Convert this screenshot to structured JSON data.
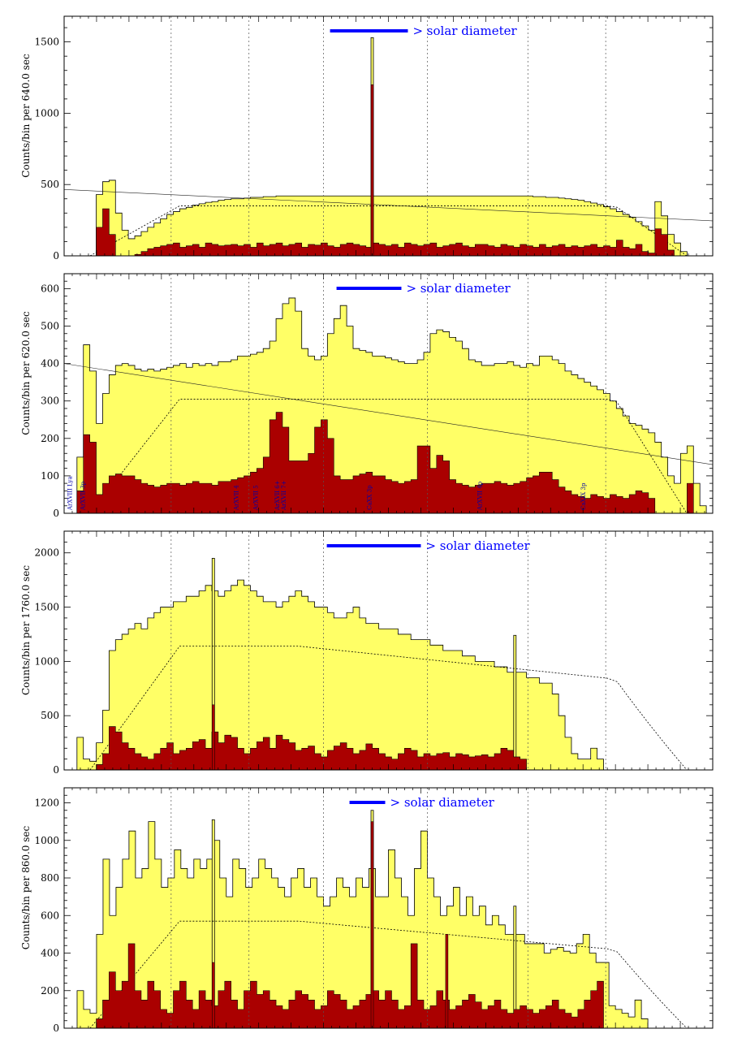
{
  "colors": {
    "total_fill": "#ffff66",
    "line_fill": "#aa0000",
    "outline": "#000000",
    "legend_bar": "#0000ff",
    "legend_text": "#0000ff",
    "label_text": "#0000aa"
  },
  "legend_text": "> solar diameter",
  "chart_data": [
    {
      "type": "area",
      "ylabel": "Counts/bin per   640.0 sec",
      "ylim": [
        0,
        1680
      ],
      "yticks": [
        0,
        500,
        1000,
        1500
      ],
      "xlim": [
        0,
        100
      ],
      "total_counts": [
        0,
        0,
        0,
        0,
        0,
        430,
        520,
        530,
        300,
        180,
        120,
        140,
        170,
        200,
        230,
        260,
        290,
        310,
        330,
        340,
        355,
        365,
        375,
        380,
        390,
        395,
        400,
        400,
        405,
        410,
        410,
        415,
        415,
        420,
        420,
        420,
        420,
        420,
        420,
        420,
        420,
        420,
        420,
        420,
        420,
        420,
        420,
        420,
        420,
        420,
        420,
        420,
        420,
        420,
        420,
        420,
        420,
        420,
        420,
        420,
        420,
        420,
        420,
        420,
        420,
        420,
        420,
        420,
        420,
        420,
        420,
        420,
        420,
        415,
        415,
        410,
        410,
        405,
        400,
        395,
        390,
        380,
        370,
        360,
        345,
        330,
        310,
        290,
        270,
        240,
        210,
        180,
        380,
        280,
        150,
        90,
        30,
        0,
        0,
        0,
        0
      ],
      "spike_total": {
        "x": 47.5,
        "y": 1530
      },
      "line_counts": [
        0,
        0,
        0,
        0,
        0,
        200,
        330,
        150,
        0,
        0,
        0,
        10,
        30,
        50,
        60,
        70,
        80,
        90,
        60,
        70,
        80,
        60,
        90,
        80,
        70,
        75,
        80,
        70,
        80,
        60,
        90,
        70,
        80,
        90,
        70,
        80,
        90,
        60,
        80,
        75,
        90,
        70,
        60,
        80,
        90,
        80,
        70,
        60,
        90,
        80,
        70,
        80,
        60,
        90,
        80,
        70,
        80,
        90,
        60,
        70,
        80,
        90,
        70,
        60,
        80,
        80,
        70,
        60,
        80,
        70,
        60,
        80,
        70,
        60,
        80,
        60,
        70,
        80,
        60,
        70,
        60,
        70,
        80,
        60,
        70,
        60,
        110,
        60,
        50,
        80,
        30,
        20,
        190,
        150,
        40,
        0,
        0,
        0,
        0,
        0,
        0
      ],
      "spike_line": {
        "x": 47.5,
        "y": 1200
      },
      "continuum": {
        "start": 465,
        "end": 245
      },
      "model_peak": 350,
      "legend_bar_pos": [
        41,
        53
      ],
      "vlines": [
        16.5,
        28.5,
        40,
        56,
        71.5,
        83.5
      ],
      "labels": []
    },
    {
      "type": "area",
      "ylabel": "Counts/bin per   620.0 sec",
      "ylim": [
        0,
        640
      ],
      "yticks": [
        0,
        100,
        200,
        300,
        400,
        500,
        600
      ],
      "xlim": [
        0,
        100
      ],
      "total_counts": [
        0,
        0,
        150,
        450,
        380,
        240,
        320,
        370,
        395,
        400,
        395,
        385,
        380,
        385,
        380,
        385,
        390,
        395,
        400,
        390,
        400,
        395,
        400,
        395,
        405,
        405,
        410,
        420,
        420,
        425,
        430,
        440,
        460,
        520,
        560,
        575,
        540,
        440,
        420,
        410,
        420,
        480,
        520,
        555,
        500,
        440,
        435,
        430,
        420,
        420,
        415,
        410,
        405,
        400,
        400,
        410,
        430,
        480,
        490,
        485,
        470,
        460,
        440,
        410,
        405,
        395,
        395,
        400,
        400,
        405,
        395,
        390,
        400,
        395,
        420,
        420,
        410,
        400,
        380,
        370,
        360,
        350,
        340,
        330,
        320,
        300,
        280,
        260,
        240,
        235,
        225,
        215,
        190,
        150,
        100,
        80,
        160,
        180,
        80,
        20,
        0
      ],
      "line_counts": [
        0,
        0,
        60,
        210,
        190,
        50,
        80,
        100,
        105,
        100,
        100,
        90,
        80,
        75,
        70,
        75,
        80,
        80,
        75,
        80,
        85,
        80,
        80,
        75,
        85,
        85,
        90,
        95,
        100,
        110,
        120,
        150,
        250,
        270,
        230,
        140,
        140,
        140,
        160,
        230,
        250,
        200,
        100,
        90,
        90,
        100,
        105,
        110,
        100,
        100,
        90,
        85,
        80,
        85,
        90,
        180,
        180,
        120,
        155,
        140,
        90,
        80,
        75,
        70,
        75,
        80,
        80,
        85,
        80,
        75,
        80,
        85,
        95,
        100,
        110,
        110,
        90,
        70,
        60,
        50,
        45,
        40,
        50,
        45,
        40,
        50,
        45,
        40,
        50,
        60,
        55,
        40,
        0,
        0,
        0,
        0,
        0,
        80,
        0,
        0,
        0
      ],
      "continuum": {
        "start": 400,
        "end": 130
      },
      "model_peak": 305,
      "legend_bar_pos": [
        42,
        52
      ],
      "vlines": [
        16.5,
        28.5,
        40,
        56,
        71.5,
        83.5
      ],
      "labels": [
        {
          "x": 0.8,
          "text": "ArXVIII Lya"
        },
        {
          "x": 2.8,
          "text": "ArXVII 3p"
        },
        {
          "x": 26.5,
          "text": "ArXVII 4"
        },
        {
          "x": 29.5,
          "text": "ArXVII 5"
        },
        {
          "x": 32.8,
          "text": "ArXVII 6+"
        },
        {
          "x": 33.8,
          "text": "ArXVII 7+"
        },
        {
          "x": 47,
          "text": "CaXX 3p"
        },
        {
          "x": 64,
          "text": "ArXVII 4p"
        },
        {
          "x": 80,
          "text": "CaXIX 3p"
        }
      ]
    },
    {
      "type": "area",
      "ylabel": "Counts/bin per   1760.0 sec",
      "ylim": [
        0,
        2200
      ],
      "yticks": [
        0,
        500,
        1000,
        1500,
        2000
      ],
      "xlim": [
        0,
        100
      ],
      "total_counts": [
        0,
        0,
        300,
        100,
        80,
        250,
        550,
        1100,
        1200,
        1250,
        1300,
        1350,
        1300,
        1400,
        1450,
        1500,
        1500,
        1550,
        1550,
        1600,
        1600,
        1650,
        1700,
        1650,
        1600,
        1650,
        1700,
        1750,
        1700,
        1650,
        1600,
        1550,
        1550,
        1500,
        1550,
        1600,
        1650,
        1600,
        1550,
        1500,
        1500,
        1450,
        1400,
        1400,
        1450,
        1500,
        1400,
        1350,
        1350,
        1300,
        1300,
        1300,
        1250,
        1250,
        1200,
        1200,
        1200,
        1150,
        1150,
        1100,
        1100,
        1100,
        1050,
        1050,
        1000,
        1000,
        1000,
        950,
        950,
        900,
        900,
        900,
        850,
        850,
        800,
        800,
        700,
        500,
        300,
        150,
        100,
        100,
        200,
        100,
        0,
        0,
        0,
        0,
        0,
        0,
        0,
        0,
        0,
        0,
        0,
        0,
        0,
        0,
        0,
        0,
        0
      ],
      "spike_total_list": [
        {
          "x": 23,
          "y": 1950
        },
        {
          "x": 69.5,
          "y": 1240
        }
      ],
      "line_counts": [
        0,
        0,
        0,
        0,
        0,
        50,
        150,
        400,
        350,
        250,
        200,
        150,
        120,
        100,
        150,
        200,
        250,
        150,
        180,
        200,
        260,
        280,
        200,
        350,
        250,
        320,
        300,
        200,
        150,
        200,
        260,
        300,
        200,
        320,
        280,
        250,
        180,
        200,
        220,
        150,
        120,
        180,
        220,
        250,
        200,
        150,
        180,
        240,
        200,
        150,
        120,
        100,
        150,
        200,
        180,
        120,
        150,
        130,
        150,
        160,
        120,
        150,
        140,
        120,
        130,
        140,
        120,
        150,
        200,
        180,
        120,
        100,
        0,
        0,
        0,
        0,
        0,
        0,
        0,
        0,
        0,
        0,
        0,
        0,
        0,
        0,
        0,
        0,
        0,
        0,
        0,
        0,
        0,
        0,
        0,
        0,
        0,
        0,
        0,
        0,
        0
      ],
      "spike_line_list": [
        {
          "x": 23,
          "y": 600
        }
      ],
      "continuum": {
        "start": 0,
        "end": 0
      },
      "model_peak": 1140,
      "legend_bar_pos": [
        40.5,
        55
      ],
      "vlines": [
        16.5,
        28.5,
        40,
        56,
        71.5,
        83.5
      ],
      "labels": []
    },
    {
      "type": "area",
      "ylabel": "Counts/bin per   860.0 sec",
      "ylim": [
        0,
        1280
      ],
      "yticks": [
        0,
        200,
        400,
        600,
        800,
        1000,
        1200
      ],
      "xlim": [
        0,
        100
      ],
      "total_counts": [
        0,
        0,
        200,
        100,
        80,
        500,
        900,
        600,
        750,
        900,
        1050,
        800,
        850,
        1100,
        900,
        750,
        800,
        950,
        850,
        800,
        900,
        850,
        900,
        1000,
        800,
        700,
        900,
        850,
        750,
        800,
        900,
        850,
        800,
        750,
        700,
        800,
        850,
        750,
        800,
        700,
        650,
        700,
        800,
        750,
        700,
        800,
        750,
        850,
        700,
        700,
        950,
        800,
        700,
        600,
        850,
        1050,
        800,
        700,
        600,
        650,
        750,
        600,
        700,
        600,
        650,
        550,
        600,
        550,
        500,
        500,
        500,
        450,
        450,
        450,
        400,
        420,
        430,
        410,
        400,
        450,
        500,
        400,
        350,
        350,
        120,
        100,
        80,
        60,
        150,
        50,
        0,
        0,
        0,
        0,
        0,
        0,
        0,
        0,
        0,
        0
      ],
      "spike_total_list": [
        {
          "x": 23,
          "y": 1110
        },
        {
          "x": 47.5,
          "y": 1160
        },
        {
          "x": 69.5,
          "y": 650
        }
      ],
      "line_counts": [
        0,
        0,
        0,
        0,
        0,
        50,
        150,
        300,
        200,
        250,
        450,
        200,
        150,
        250,
        200,
        100,
        80,
        200,
        250,
        150,
        100,
        200,
        150,
        120,
        200,
        250,
        150,
        100,
        200,
        250,
        180,
        200,
        150,
        120,
        100,
        150,
        200,
        180,
        150,
        100,
        120,
        200,
        180,
        150,
        100,
        120,
        150,
        180,
        200,
        150,
        200,
        150,
        100,
        120,
        450,
        150,
        100,
        120,
        200,
        150,
        100,
        120,
        150,
        180,
        140,
        100,
        120,
        150,
        100,
        80,
        100,
        120,
        100,
        80,
        100,
        120,
        150,
        100,
        80,
        60,
        100,
        150,
        200,
        250,
        0,
        0,
        0,
        0,
        0,
        0,
        0,
        0,
        0,
        0,
        0,
        0,
        0,
        0,
        0,
        0,
        0
      ],
      "spike_line_list": [
        {
          "x": 23,
          "y": 350
        },
        {
          "x": 47.5,
          "y": 1100
        },
        {
          "x": 59,
          "y": 500
        }
      ],
      "continuum": {
        "start": 0,
        "end": 0
      },
      "model_peak": 570,
      "legend_bar_pos": [
        44,
        49.5
      ],
      "vlines": [
        16.5,
        28.5,
        40,
        56,
        71.5,
        83.5
      ],
      "labels": []
    }
  ]
}
